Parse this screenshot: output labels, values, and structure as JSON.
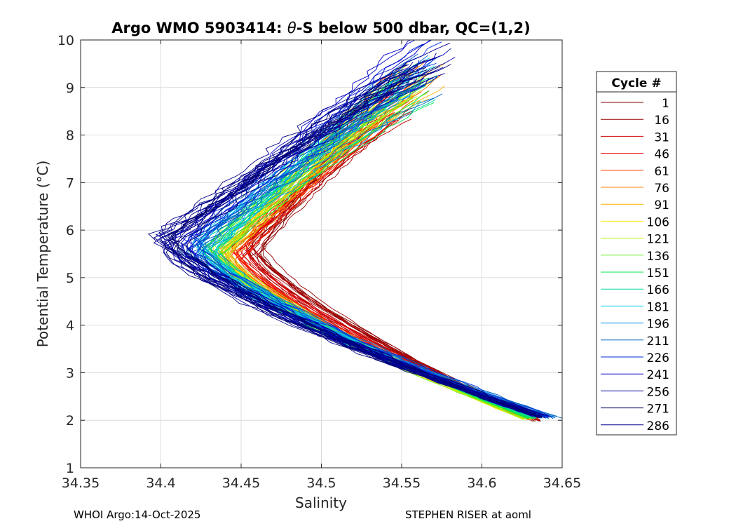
{
  "chart_data": {
    "type": "line",
    "title_prefix": "Argo WMO 5903414: ",
    "title_theta": "θ",
    "title_suffix": "-S below 500 dbar,  QC=(1,2)",
    "xlabel": "Salinity",
    "ylabel": "Potential Temperature (°C)",
    "xlim": [
      34.35,
      34.65
    ],
    "ylim": [
      1,
      10
    ],
    "xticks": [
      34.35,
      34.4,
      34.45,
      34.5,
      34.55,
      34.6,
      34.65
    ],
    "xtick_labels": [
      "34.35",
      "34.4",
      "34.45",
      "34.5",
      "34.55",
      "34.6",
      "34.65"
    ],
    "yticks": [
      1,
      2,
      3,
      4,
      5,
      6,
      7,
      8,
      9,
      10
    ],
    "ytick_labels": [
      "1",
      "2",
      "3",
      "4",
      "5",
      "6",
      "7",
      "8",
      "9",
      "10"
    ],
    "grid": true,
    "legend_title": "Cycle #",
    "legend_position": "right-outside",
    "series": [
      {
        "name": "1",
        "color": "#800000",
        "S_turn": 34.46,
        "T_turn": 5.65,
        "S_top": 34.535,
        "T_top": 8.3,
        "S_bot": 34.635,
        "T_bot": 2.0
      },
      {
        "name": "16",
        "color": "#990000",
        "S_turn": 34.458,
        "T_turn": 5.6,
        "S_top": 34.54,
        "T_top": 8.5,
        "S_bot": 34.635,
        "T_bot": 2.0
      },
      {
        "name": "31",
        "color": "#cc0000",
        "S_turn": 34.452,
        "T_turn": 5.55,
        "S_top": 34.545,
        "T_top": 8.7,
        "S_bot": 34.633,
        "T_bot": 2.02
      },
      {
        "name": "46",
        "color": "#ee0000",
        "S_turn": 34.448,
        "T_turn": 5.5,
        "S_top": 34.55,
        "T_top": 8.8,
        "S_bot": 34.632,
        "T_bot": 2.02
      },
      {
        "name": "61",
        "color": "#ff3300",
        "S_turn": 34.445,
        "T_turn": 5.5,
        "S_top": 34.555,
        "T_top": 8.9,
        "S_bot": 34.632,
        "T_bot": 2.03
      },
      {
        "name": "76",
        "color": "#ff8000",
        "S_turn": 34.442,
        "T_turn": 5.5,
        "S_top": 34.565,
        "T_top": 9.1,
        "S_bot": 34.63,
        "T_bot": 2.03
      },
      {
        "name": "91",
        "color": "#ffb000",
        "S_turn": 34.44,
        "T_turn": 5.5,
        "S_top": 34.57,
        "T_top": 9.15,
        "S_bot": 34.63,
        "T_bot": 2.04
      },
      {
        "name": "106",
        "color": "#ffe600",
        "S_turn": 34.437,
        "T_turn": 5.5,
        "S_top": 34.56,
        "T_top": 9.1,
        "S_bot": 34.628,
        "T_bot": 2.04
      },
      {
        "name": "121",
        "color": "#b5f000",
        "S_turn": 34.436,
        "T_turn": 5.55,
        "S_top": 34.555,
        "T_top": 9.05,
        "S_bot": 34.628,
        "T_bot": 2.05
      },
      {
        "name": "136",
        "color": "#66ee22",
        "S_turn": 34.434,
        "T_turn": 5.55,
        "S_top": 34.555,
        "T_top": 9.0,
        "S_bot": 34.63,
        "T_bot": 2.05
      },
      {
        "name": "151",
        "color": "#00e650",
        "S_turn": 34.433,
        "T_turn": 5.6,
        "S_top": 34.56,
        "T_top": 9.1,
        "S_bot": 34.632,
        "T_bot": 2.05
      },
      {
        "name": "166",
        "color": "#00d9a0",
        "S_turn": 34.43,
        "T_turn": 5.6,
        "S_top": 34.56,
        "T_top": 9.15,
        "S_bot": 34.634,
        "T_bot": 2.05
      },
      {
        "name": "181",
        "color": "#00d0e6",
        "S_turn": 34.428,
        "T_turn": 5.65,
        "S_top": 34.56,
        "T_top": 9.2,
        "S_bot": 34.636,
        "T_bot": 2.06
      },
      {
        "name": "196",
        "color": "#0090e6",
        "S_turn": 34.425,
        "T_turn": 5.7,
        "S_top": 34.56,
        "T_top": 9.2,
        "S_bot": 34.64,
        "T_bot": 2.06
      },
      {
        "name": "211",
        "color": "#0060c0",
        "S_turn": 34.42,
        "T_turn": 5.7,
        "S_top": 34.565,
        "T_top": 9.3,
        "S_bot": 34.645,
        "T_bot": 2.06
      },
      {
        "name": "226",
        "color": "#0030e0",
        "S_turn": 34.415,
        "T_turn": 5.7,
        "S_top": 34.57,
        "T_top": 9.6,
        "S_bot": 34.64,
        "T_bot": 2.07
      },
      {
        "name": "241",
        "color": "#0000c8",
        "S_turn": 34.41,
        "T_turn": 5.75,
        "S_top": 34.573,
        "T_top": 9.85,
        "S_bot": 34.638,
        "T_bot": 2.07
      },
      {
        "name": "256",
        "color": "#000099",
        "S_turn": 34.405,
        "T_turn": 5.75,
        "S_top": 34.57,
        "T_top": 9.6,
        "S_bot": 34.638,
        "T_bot": 2.08
      },
      {
        "name": "271",
        "color": "#000066",
        "S_turn": 34.41,
        "T_turn": 5.75,
        "S_top": 34.565,
        "T_top": 9.4,
        "S_bot": 34.636,
        "T_bot": 2.08
      },
      {
        "name": "286",
        "color": "#00008b",
        "S_turn": 34.4,
        "T_turn": 5.8,
        "S_top": 34.56,
        "T_top": 9.3,
        "S_bot": 34.635,
        "T_bot": 2.08
      }
    ]
  },
  "footer": {
    "left": "WHOI Argo:14-Oct-2025",
    "right": "STEPHEN RISER at aoml"
  }
}
